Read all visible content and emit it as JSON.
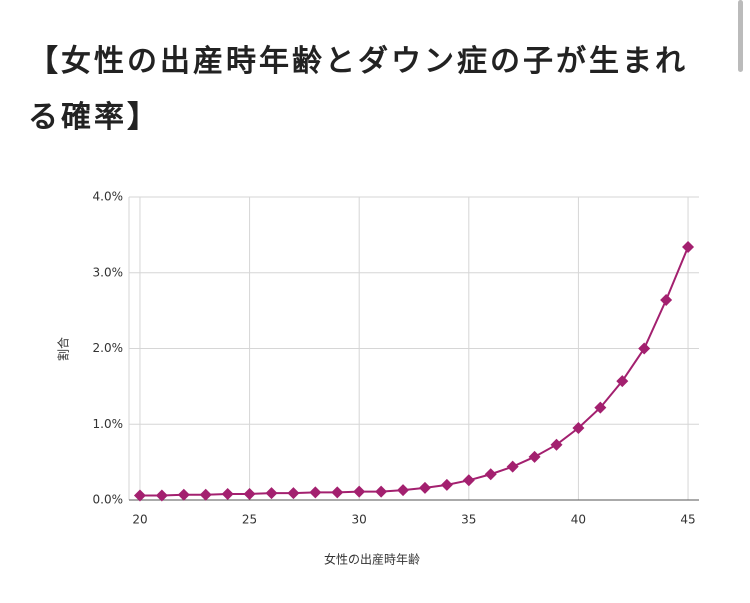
{
  "chart_data": {
    "type": "line",
    "title": "【女性の出産時年齢とダウン症の子が生まれる確率】",
    "x_label": "女性の出産時年齢",
    "y_label": "割合",
    "x": [
      20,
      21,
      22,
      23,
      24,
      25,
      26,
      27,
      28,
      29,
      30,
      31,
      32,
      33,
      34,
      35,
      36,
      37,
      38,
      39,
      40,
      41,
      42,
      43,
      44,
      45
    ],
    "series": [
      {
        "color": "#a3206f",
        "values": [
          0.06,
          0.06,
          0.07,
          0.07,
          0.08,
          0.08,
          0.09,
          0.09,
          0.1,
          0.1,
          0.11,
          0.11,
          0.13,
          0.16,
          0.2,
          0.26,
          0.34,
          0.44,
          0.57,
          0.73,
          0.95,
          1.22,
          1.57,
          2.0,
          2.64,
          3.34
        ]
      }
    ],
    "xlim": [
      19.5,
      45.5
    ],
    "xticks": [
      20,
      25,
      30,
      35,
      40,
      45
    ],
    "ylim": [
      0,
      4
    ],
    "yticks": [
      {
        "value": 0,
        "label": "0.0%"
      },
      {
        "value": 1,
        "label": "1.0%"
      },
      {
        "value": 2,
        "label": "2.0%"
      },
      {
        "value": 3,
        "label": "3.0%"
      },
      {
        "value": 4,
        "label": "4.0%"
      }
    ],
    "grid": true
  }
}
